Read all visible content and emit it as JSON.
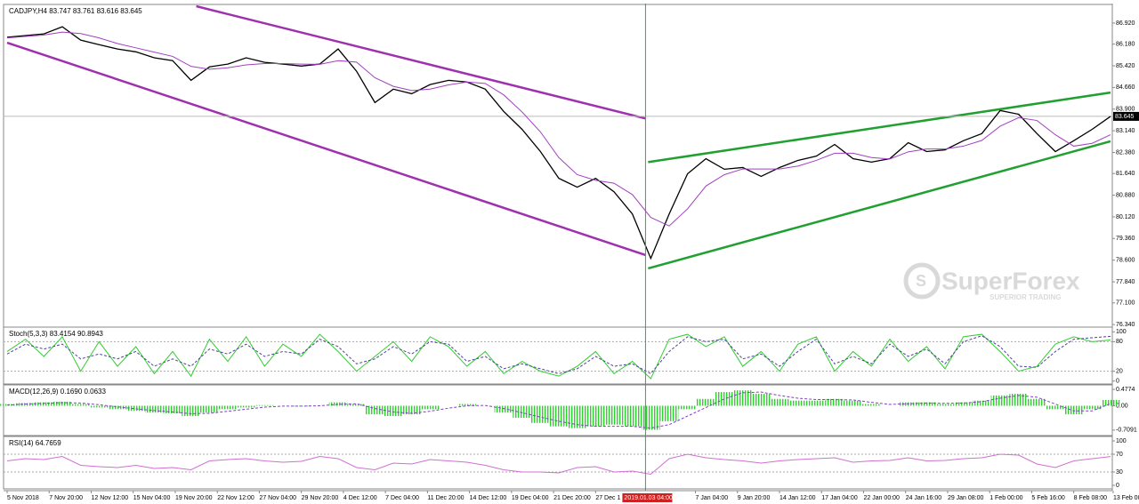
{
  "watermark": {
    "brand": "SuperForex",
    "tagline": "SUPERIOR TRADING"
  },
  "chart_data": [
    {
      "type": "line",
      "title": "CADJPY,H4 83.747 83.761 83.616 83.645",
      "x": [
        0,
        7,
        14,
        21,
        28,
        35,
        42,
        49,
        56,
        63,
        70,
        77,
        84,
        91,
        98,
        105,
        112,
        119,
        126,
        133,
        140,
        147,
        154,
        161,
        168,
        175,
        182,
        189,
        196,
        203,
        210,
        217,
        224,
        231,
        238,
        245,
        252,
        259,
        266,
        273,
        280,
        287,
        294,
        301,
        308,
        315,
        322,
        329,
        336,
        343,
        350,
        357,
        364,
        371,
        378,
        385,
        392,
        399,
        406,
        413,
        420
      ],
      "xlim": [
        0,
        420
      ],
      "xticks": [
        {
          "value": 0,
          "label": "5 Nov 2018"
        },
        {
          "value": 16,
          "label": "7 Nov 20:00"
        },
        {
          "value": 32,
          "label": "12 Nov 12:00"
        },
        {
          "value": 48,
          "label": "15 Nov 04:00"
        },
        {
          "value": 64,
          "label": "19 Nov 20:00"
        },
        {
          "value": 80,
          "label": "22 Nov 12:00"
        },
        {
          "value": 96,
          "label": "27 Nov 04:00"
        },
        {
          "value": 112,
          "label": "29 Nov 20:00"
        },
        {
          "value": 128,
          "label": "4 Dec 12:00"
        },
        {
          "value": 144,
          "label": "7 Dec 04:00"
        },
        {
          "value": 160,
          "label": "11 Dec 20:00"
        },
        {
          "value": 176,
          "label": "14 Dec 12:00"
        },
        {
          "value": 192,
          "label": "19 Dec 04:00"
        },
        {
          "value": 208,
          "label": "21 Dec 20:00"
        },
        {
          "value": 224,
          "label": "27 Dec 1"
        },
        {
          "value": 262,
          "label": "7 Jan 04:00"
        },
        {
          "value": 278,
          "label": "9 Jan 20:00"
        },
        {
          "value": 294,
          "label": "14 Jan 12:00"
        },
        {
          "value": 310,
          "label": "17 Jan 04:00"
        },
        {
          "value": 326,
          "label": "22 Jan 00:00"
        },
        {
          "value": 342,
          "label": "24 Jan 16:00"
        },
        {
          "value": 358,
          "label": "29 Jan 08:00"
        },
        {
          "value": 374,
          "label": "1 Feb 00:00"
        },
        {
          "value": 390,
          "label": "5 Feb 16:00"
        },
        {
          "value": 406,
          "label": "8 Feb 08:00"
        },
        {
          "value": 421,
          "label": "13 Feb 00:00"
        }
      ],
      "ylim": [
        76.25,
        87.51
      ],
      "yticks": [
        {
          "value": 86.92,
          "label": "86.920"
        },
        {
          "value": 86.18,
          "label": "86.180"
        },
        {
          "value": 85.42,
          "label": "85.420"
        },
        {
          "value": 84.66,
          "label": "84.660"
        },
        {
          "value": 83.9,
          "label": "83.900"
        },
        {
          "value": 83.14,
          "label": "83.140"
        },
        {
          "value": 82.38,
          "label": "82.380"
        },
        {
          "value": 81.64,
          "label": "81.640"
        },
        {
          "value": 80.88,
          "label": "80.880"
        },
        {
          "value": 80.12,
          "label": "80.120"
        },
        {
          "value": 79.36,
          "label": "79.360"
        },
        {
          "value": 78.6,
          "label": "78.600"
        },
        {
          "value": 77.84,
          "label": "77.840"
        },
        {
          "value": 77.1,
          "label": "77.100"
        },
        {
          "value": 76.34,
          "label": "76.340"
        }
      ],
      "series": [
        {
          "type": "line",
          "color": "#000000",
          "width": 1.3,
          "values": [
            86.42,
            86.48,
            86.54,
            86.79,
            86.32,
            86.16,
            86.01,
            85.91,
            85.7,
            85.6,
            84.91,
            85.38,
            85.48,
            85.7,
            85.54,
            85.48,
            85.41,
            85.48,
            86.01,
            85.23,
            84.13,
            84.6,
            84.44,
            84.76,
            84.91,
            84.85,
            84.6,
            83.82,
            83.19,
            82.41,
            81.47,
            81.16,
            81.47,
            81.0,
            80.22,
            78.66,
            80.22,
            81.63,
            82.16,
            81.79,
            81.85,
            81.54,
            81.85,
            82.1,
            82.25,
            82.66,
            82.16,
            82.04,
            82.16,
            82.72,
            82.41,
            82.47,
            82.79,
            83.04,
            83.85,
            83.72,
            83.04,
            82.41,
            82.79,
            83.19,
            83.645
          ]
        },
        {
          "type": "line",
          "color": "#a040c0",
          "width": 1,
          "values": [
            86.4,
            86.45,
            86.5,
            86.6,
            86.55,
            86.4,
            86.2,
            86.05,
            85.9,
            85.75,
            85.4,
            85.3,
            85.35,
            85.45,
            85.5,
            85.5,
            85.48,
            85.47,
            85.6,
            85.55,
            85.0,
            84.7,
            84.55,
            84.6,
            84.75,
            84.85,
            84.8,
            84.4,
            83.8,
            83.1,
            82.2,
            81.6,
            81.4,
            81.3,
            80.9,
            80.1,
            79.8,
            80.4,
            81.2,
            81.6,
            81.8,
            81.8,
            81.8,
            81.9,
            82.1,
            82.35,
            82.35,
            82.2,
            82.15,
            82.4,
            82.5,
            82.5,
            82.6,
            82.8,
            83.3,
            83.6,
            83.5,
            83.0,
            82.6,
            82.7,
            83.0
          ]
        }
      ],
      "trendlines": [
        {
          "color": "#a030b0",
          "x": [
            72,
            243
          ],
          "values": [
            87.51,
            83.57
          ]
        },
        {
          "color": "#a030b0",
          "x": [
            0,
            243
          ],
          "values": [
            86.23,
            78.78
          ]
        },
        {
          "color": "#20a030",
          "x": [
            244,
            420
          ],
          "values": [
            82.04,
            84.48
          ]
        },
        {
          "color": "#20a030",
          "x": [
            244,
            420
          ],
          "values": [
            78.31,
            82.77
          ]
        }
      ],
      "current_price": {
        "value": 83.645,
        "label": "83.645"
      },
      "crosshair": {
        "x": 243,
        "label": "2019.01.03 04:00"
      }
    },
    {
      "type": "line",
      "title": "Stoch(5,3,3) 83.4154 90.8943",
      "ylim": [
        -6,
        106
      ],
      "yticks": [
        100,
        80,
        20,
        0
      ],
      "levels": [
        80,
        20
      ],
      "series": [
        {
          "type": "line",
          "color": "#32cd32",
          "width": 1,
          "values": [
            60,
            85,
            50,
            90,
            20,
            80,
            30,
            70,
            15,
            60,
            10,
            85,
            40,
            90,
            30,
            75,
            50,
            95,
            60,
            20,
            50,
            80,
            40,
            90,
            70,
            30,
            60,
            15,
            40,
            20,
            10,
            30,
            60,
            15,
            40,
            5,
            85,
            95,
            70,
            90,
            30,
            60,
            20,
            75,
            90,
            20,
            60,
            30,
            85,
            40,
            70,
            25,
            90,
            95,
            60,
            20,
            30,
            75,
            90,
            80,
            83.4154
          ]
        },
        {
          "type": "line",
          "color": "#5040a0",
          "width": 1,
          "dash": true,
          "values": [
            55,
            75,
            65,
            75,
            45,
            55,
            45,
            60,
            30,
            45,
            30,
            65,
            55,
            75,
            50,
            60,
            55,
            85,
            70,
            35,
            45,
            70,
            55,
            80,
            75,
            40,
            50,
            25,
            35,
            25,
            15,
            25,
            50,
            30,
            35,
            15,
            60,
            90,
            80,
            85,
            45,
            55,
            30,
            60,
            85,
            35,
            50,
            35,
            75,
            50,
            65,
            35,
            80,
            92,
            70,
            30,
            28,
            60,
            85,
            88,
            90.8943
          ]
        }
      ]
    },
    {
      "type": "bar",
      "title": "MACD(12,26,9) 0.1690 0.0633",
      "ylim": [
        -0.868,
        0.557
      ],
      "yticks": [
        0.4774,
        {
          "value": 0,
          "label": "0.00"
        },
        -0.7091
      ],
      "series": [
        {
          "type": "bar",
          "color": "#32cd32",
          "values": [
            0.05,
            0.08,
            0.1,
            0.12,
            0.05,
            -0.05,
            -0.1,
            -0.15,
            -0.2,
            -0.22,
            -0.3,
            -0.2,
            -0.1,
            -0.05,
            0.02,
            0,
            -0.02,
            0,
            0.1,
            0.05,
            -0.25,
            -0.3,
            -0.25,
            -0.1,
            0,
            0.05,
            0,
            -0.2,
            -0.35,
            -0.5,
            -0.6,
            -0.65,
            -0.6,
            -0.55,
            -0.6,
            -0.7,
            -0.45,
            -0.1,
            0.2,
            0.4,
            0.45,
            0.35,
            0.2,
            0.15,
            0.15,
            0.2,
            0.15,
            0.05,
            0,
            0.1,
            0.1,
            0.05,
            0.1,
            0.15,
            0.3,
            0.35,
            0.2,
            -0.1,
            -0.25,
            -0.1,
            0.169
          ]
        },
        {
          "type": "line",
          "color": "#8040c0",
          "width": 1,
          "dash": true,
          "values": [
            0.02,
            0.05,
            0.07,
            0.09,
            0.08,
            0.03,
            -0.03,
            -0.09,
            -0.14,
            -0.18,
            -0.23,
            -0.22,
            -0.16,
            -0.1,
            -0.04,
            -0.01,
            -0.01,
            0,
            0.04,
            0.06,
            -0.08,
            -0.18,
            -0.22,
            -0.16,
            -0.07,
            0,
            0.01,
            -0.08,
            -0.2,
            -0.33,
            -0.45,
            -0.55,
            -0.6,
            -0.6,
            -0.6,
            -0.65,
            -0.55,
            -0.3,
            -0.05,
            0.2,
            0.38,
            0.4,
            0.3,
            0.22,
            0.18,
            0.18,
            0.17,
            0.1,
            0.04,
            0.06,
            0.08,
            0.07,
            0.08,
            0.12,
            0.22,
            0.3,
            0.25,
            0.05,
            -0.15,
            -0.15,
            0.0633
          ]
        }
      ]
    },
    {
      "type": "line",
      "title": "RSI(14) 64.7659",
      "ylim": [
        -8,
        106
      ],
      "yticks": [
        100,
        70,
        30,
        0
      ],
      "levels": [
        70,
        30
      ],
      "series": [
        {
          "type": "line",
          "color": "#d070d0",
          "width": 1,
          "values": [
            55,
            60,
            58,
            65,
            45,
            42,
            40,
            45,
            38,
            40,
            35,
            55,
            58,
            60,
            55,
            52,
            54,
            65,
            60,
            40,
            35,
            50,
            48,
            58,
            55,
            52,
            45,
            35,
            30,
            30,
            28,
            40,
            42,
            30,
            32,
            25,
            60,
            70,
            62,
            58,
            55,
            50,
            55,
            58,
            60,
            62,
            52,
            55,
            56,
            62,
            55,
            56,
            60,
            62,
            70,
            68,
            48,
            40,
            55,
            60,
            64.7659
          ]
        }
      ]
    }
  ]
}
